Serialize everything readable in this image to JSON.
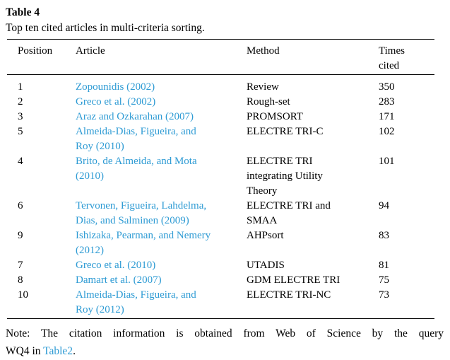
{
  "colors": {
    "link": "#2E9BD4",
    "text": "#000000",
    "rule": "#000000",
    "background": "#FFFFFF"
  },
  "header": {
    "label": "Table 4",
    "caption": "Top ten cited articles in multi-criteria sorting."
  },
  "table": {
    "columns": {
      "position": "Position",
      "article": "Article",
      "method": "Method",
      "times_cited": "Times\ncited"
    },
    "rows": [
      {
        "position": "1",
        "article": "Zopounidis (2002)",
        "method": "Review",
        "times_cited": "350"
      },
      {
        "position": "2",
        "article": "Greco et al. (2002)",
        "method": "Rough-set",
        "times_cited": "283"
      },
      {
        "position": "3",
        "article": "Araz and Ozkarahan (2007)",
        "method": "PROMSORT",
        "times_cited": "171"
      },
      {
        "position": "5",
        "article": "Almeida-Dias, Figueira, and\nRoy (2010)",
        "method": "ELECTRE TRI-C",
        "times_cited": "102"
      },
      {
        "position": "4",
        "article": "Brito, de Almeida, and Mota\n(2010)",
        "method": "ELECTRE TRI\nintegrating Utility\nTheory",
        "times_cited": "101"
      },
      {
        "position": "6",
        "article": "Tervonen, Figueira, Lahdelma,\nDias, and Salminen (2009)",
        "method": "ELECTRE TRI and\nSMAA",
        "times_cited": "94"
      },
      {
        "position": "9",
        "article": "Ishizaka, Pearman, and Nemery\n(2012)",
        "method": "AHPsort",
        "times_cited": "83"
      },
      {
        "position": "7",
        "article": "Greco et al. (2010)",
        "method": "UTADIS",
        "times_cited": "81"
      },
      {
        "position": "8",
        "article": "Damart et al. (2007)",
        "method": "GDM ELECTRE TRI",
        "times_cited": "75"
      },
      {
        "position": "10",
        "article": "Almeida-Dias, Figueira, and\nRoy (2012)",
        "method": "ELECTRE TRI-NC",
        "times_cited": "73"
      }
    ]
  },
  "note": {
    "line1": "Note: The citation information is obtained from Web of Science by the query",
    "line2_prefix": "WQ4 in ",
    "link_text": "Table2",
    "line2_suffix": "."
  }
}
